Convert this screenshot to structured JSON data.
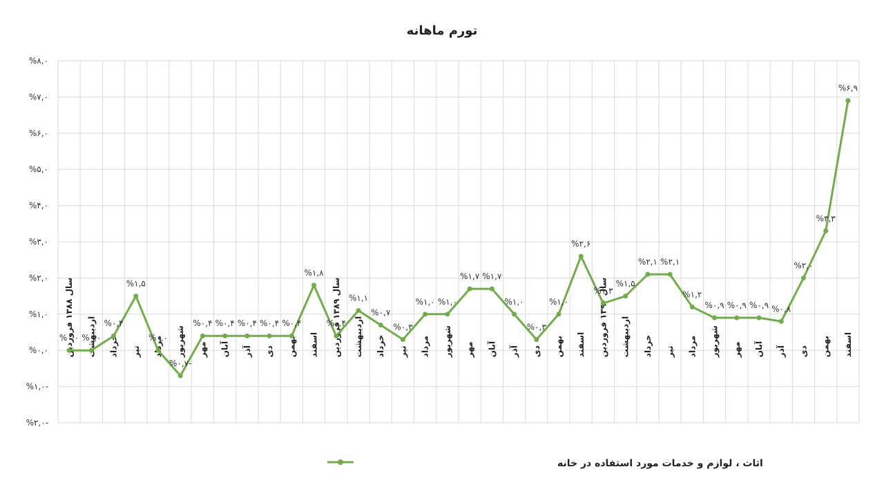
{
  "chart_data": {
    "type": "line",
    "title": "تورم ماهانه",
    "ylim": [
      -2,
      8
    ],
    "yticks": [
      -2,
      -1,
      0,
      1,
      2,
      3,
      4,
      5,
      6,
      7,
      8
    ],
    "ytick_labels": [
      "%۲,۰-",
      "%۱,۰-",
      "%۰,۰",
      "%۱,۰",
      "%۲,۰",
      "%۳,۰",
      "%۴,۰",
      "%۵,۰",
      "%۶,۰",
      "%۷,۰",
      "%۸,۰"
    ],
    "grid": true,
    "legend": "bottom-center",
    "color": "#70ad47",
    "categories": [
      "سال ۱۳۸۸ فروردین",
      "اردیبهشت",
      "خرداد",
      "تیر",
      "مرداد",
      "شهریور",
      "مهر",
      "آبان",
      "آذر",
      "دی",
      "بهمن",
      "اسفند",
      "سال ۱۳۸۹ فروردین",
      "اردیبهشت",
      "خرداد",
      "تیر",
      "مرداد",
      "شهریور",
      "مهر",
      "آبان",
      "آذر",
      "دی",
      "بهمن",
      "اسفند",
      "سال ۱۳۹۰ فروردین",
      "اردیبهشت",
      "خرداد",
      "تیر",
      "مرداد",
      "شهریور",
      "مهر",
      "آبان",
      "آذر",
      "دی",
      "بهمن",
      "اسفند"
    ],
    "series": [
      {
        "name": "اثاث ، لوازم و خدمات مورد استفاده در خانه",
        "values": [
          0.0,
          0.0,
          0.4,
          1.5,
          0.0,
          -0.7,
          0.4,
          0.4,
          0.4,
          0.4,
          0.4,
          1.8,
          0.4,
          1.1,
          0.7,
          0.3,
          1.0,
          1.0,
          1.7,
          1.7,
          1.0,
          0.3,
          1.0,
          2.6,
          1.3,
          1.5,
          2.1,
          2.1,
          1.2,
          0.9,
          0.9,
          0.9,
          0.8,
          2.0,
          3.3,
          6.9
        ],
        "data_labels": [
          "%۰,۰",
          "%۰,۰",
          "%۰,۴",
          "%۱,۵",
          "%۰,۰",
          "%۰,۷-",
          "%۰,۴",
          "%۰,۴",
          "%۰,۴",
          "%۰,۴",
          "%۰,۴",
          "%۱,۸",
          "%۰,۴",
          "%۱,۱",
          "%۰,۷",
          "%۰,۳",
          "%۱,۰",
          "%۱,۰",
          "%۱,۷",
          "%۱,۷",
          "%۱,۰",
          "%۰,۳",
          "%۱,۰",
          "%۲,۶",
          "%۱,۳",
          "%۱,۵",
          "%۲,۱",
          "%۲,۱",
          "%۱,۲",
          "%۰,۹",
          "%۰,۹",
          "%۰,۹",
          "%۰,۸",
          "%۲,۰",
          "%۳,۳",
          "%۶,۹"
        ]
      }
    ]
  }
}
